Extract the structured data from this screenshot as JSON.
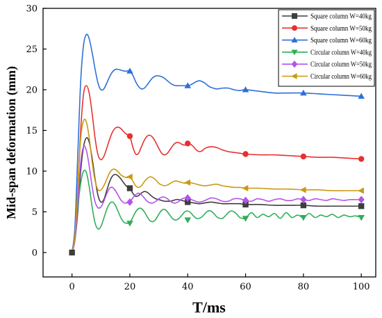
{
  "chart_data": {
    "type": "line",
    "xlabel": "T/ms",
    "ylabel": "Mid-span deformation (mm)",
    "xlim": [
      -10,
      105
    ],
    "ylim": [
      -3,
      30
    ],
    "xticks": [
      0,
      20,
      40,
      60,
      80,
      100
    ],
    "yticks": [
      0,
      5,
      10,
      15,
      20,
      25,
      30
    ],
    "grid": false,
    "legend_position": "top-right",
    "series": [
      {
        "name": "Square column W=40kg",
        "color": "#3d3d3d",
        "marker": "square",
        "x": [
          0,
          1,
          2,
          3,
          4,
          5,
          6,
          7,
          8,
          9,
          10,
          11,
          12,
          13,
          14,
          15,
          16,
          17,
          18,
          19,
          20,
          21,
          22,
          23,
          24,
          25,
          26,
          27,
          28,
          29,
          30,
          31,
          32,
          33,
          34,
          35,
          36,
          37,
          38,
          39,
          40,
          42,
          44,
          46,
          48,
          50,
          52,
          54,
          56,
          58,
          60,
          65,
          70,
          75,
          80,
          85,
          90,
          95,
          100
        ],
        "values": [
          0,
          1.5,
          5.0,
          10.0,
          13.0,
          14.1,
          13.5,
          11.5,
          9.0,
          7.0,
          6.2,
          6.5,
          7.6,
          8.7,
          9.4,
          9.6,
          9.4,
          9.0,
          8.5,
          8.1,
          7.9,
          7.3,
          6.9,
          7.0,
          7.3,
          7.5,
          7.4,
          7.1,
          6.8,
          6.6,
          6.5,
          6.4,
          6.3,
          6.3,
          6.3,
          6.4,
          6.5,
          6.5,
          6.4,
          6.3,
          6.2,
          6.1,
          6.0,
          6.1,
          6.2,
          6.1,
          6.0,
          6.0,
          6.0,
          6.0,
          5.9,
          5.9,
          5.8,
          5.8,
          5.8,
          5.7,
          5.7,
          5.7,
          5.7
        ],
        "marker_x": [
          0,
          20,
          40,
          60,
          80,
          100
        ],
        "marker_values": [
          0,
          7.9,
          6.2,
          5.9,
          5.8,
          5.7
        ]
      },
      {
        "name": "Square column W=50kg",
        "color": "#e8302e",
        "marker": "circle",
        "x": [
          0,
          1,
          2,
          3,
          4,
          5,
          6,
          7,
          8,
          9,
          10,
          11,
          12,
          13,
          14,
          15,
          16,
          17,
          18,
          19,
          20,
          21,
          22,
          23,
          24,
          25,
          26,
          27,
          28,
          29,
          30,
          31,
          32,
          33,
          34,
          35,
          36,
          37,
          38,
          39,
          40,
          41,
          42,
          43,
          44,
          45,
          46,
          48,
          50,
          52,
          54,
          56,
          58,
          60,
          65,
          70,
          75,
          80,
          85,
          90,
          95,
          100
        ],
        "values": [
          0,
          2.0,
          8.0,
          15.0,
          19.5,
          20.5,
          19.5,
          17.0,
          14.0,
          12.0,
          11.4,
          11.8,
          12.8,
          13.9,
          14.8,
          15.3,
          15.4,
          15.2,
          14.8,
          14.5,
          14.3,
          13.0,
          12.1,
          12.2,
          13.0,
          13.8,
          14.3,
          14.4,
          14.1,
          13.5,
          12.8,
          12.2,
          12.0,
          12.2,
          12.7,
          13.2,
          13.5,
          13.5,
          13.3,
          13.2,
          13.4,
          13.3,
          13.0,
          12.6,
          12.4,
          12.5,
          12.8,
          13.0,
          12.9,
          12.6,
          12.4,
          12.3,
          12.2,
          12.1,
          12.0,
          12.0,
          11.9,
          11.8,
          11.7,
          11.7,
          11.6,
          11.5
        ],
        "marker_x": [
          20,
          40,
          60,
          80,
          100
        ],
        "marker_values": [
          14.3,
          13.4,
          12.1,
          11.8,
          11.5
        ]
      },
      {
        "name": "Square column W=60kg",
        "color": "#2e6fd9",
        "marker": "triangle-up",
        "x": [
          0,
          1,
          2,
          3,
          4,
          5,
          6,
          7,
          8,
          9,
          10,
          11,
          12,
          13,
          14,
          15,
          16,
          17,
          18,
          19,
          20,
          21,
          22,
          23,
          24,
          25,
          26,
          27,
          28,
          29,
          30,
          31,
          32,
          33,
          34,
          35,
          36,
          37,
          38,
          39,
          40,
          41,
          42,
          43,
          44,
          45,
          46,
          47,
          48,
          50,
          52,
          54,
          56,
          58,
          60,
          65,
          70,
          75,
          80,
          85,
          90,
          95,
          100
        ],
        "values": [
          0,
          3.0,
          12.0,
          21.0,
          25.5,
          26.8,
          26.2,
          24.5,
          22.5,
          20.8,
          20.0,
          20.1,
          20.8,
          21.6,
          22.2,
          22.5,
          22.5,
          22.4,
          22.3,
          22.3,
          22.3,
          21.8,
          21.0,
          20.4,
          20.1,
          20.2,
          20.6,
          21.1,
          21.5,
          21.7,
          21.7,
          21.6,
          21.4,
          21.1,
          20.8,
          20.6,
          20.5,
          20.5,
          20.5,
          20.5,
          20.5,
          20.6,
          20.8,
          21.0,
          21.1,
          21.0,
          20.8,
          20.5,
          20.3,
          20.1,
          20.2,
          20.2,
          20.0,
          19.9,
          20.0,
          19.8,
          19.6,
          19.6,
          19.6,
          19.5,
          19.4,
          19.3,
          19.2
        ],
        "marker_x": [
          20,
          40,
          60,
          80,
          100
        ],
        "marker_values": [
          22.3,
          20.5,
          20.0,
          19.6,
          19.2
        ]
      },
      {
        "name": "Circular column W=40kg",
        "color": "#2fae59",
        "marker": "triangle-down",
        "x": [
          0,
          1,
          2,
          3,
          4,
          5,
          6,
          7,
          8,
          9,
          10,
          11,
          12,
          13,
          14,
          15,
          16,
          17,
          18,
          19,
          20,
          21,
          22,
          23,
          24,
          25,
          26,
          27,
          28,
          29,
          30,
          31,
          32,
          33,
          34,
          35,
          36,
          37,
          38,
          39,
          40,
          41,
          42,
          43,
          44,
          45,
          46,
          47,
          48,
          49,
          50,
          51,
          52,
          53,
          54,
          55,
          56,
          57,
          58,
          59,
          60,
          62,
          64,
          66,
          68,
          70,
          72,
          74,
          76,
          78,
          80,
          82,
          84,
          86,
          88,
          90,
          92,
          94,
          96,
          98,
          100
        ],
        "values": [
          0,
          1.5,
          5.5,
          8.5,
          10.0,
          9.8,
          8.0,
          5.5,
          3.6,
          2.9,
          3.2,
          4.2,
          5.3,
          6.0,
          6.2,
          5.8,
          5.0,
          4.2,
          3.7,
          3.6,
          3.7,
          4.3,
          5.0,
          5.4,
          5.4,
          5.0,
          4.4,
          3.9,
          3.8,
          4.1,
          4.7,
          5.2,
          5.3,
          5.0,
          4.5,
          4.1,
          4.0,
          4.2,
          4.6,
          5.0,
          5.1,
          4.9,
          4.5,
          4.2,
          4.2,
          4.4,
          4.8,
          5.1,
          5.1,
          4.8,
          4.4,
          4.2,
          4.2,
          4.5,
          4.9,
          5.1,
          5.0,
          4.7,
          4.3,
          4.2,
          4.2,
          4.9,
          4.3,
          4.7,
          4.4,
          4.8,
          4.2,
          4.9,
          4.3,
          4.6,
          4.3,
          4.8,
          4.3,
          4.6,
          4.4,
          4.7,
          4.3,
          4.6,
          4.4,
          4.5,
          4.3
        ],
        "marker_x": [
          20,
          40,
          60,
          80,
          100
        ],
        "marker_values": [
          3.6,
          4.0,
          4.2,
          4.3,
          4.3
        ]
      },
      {
        "name": "Circular column W=50kg",
        "color": "#b553e8",
        "marker": "diamond",
        "x": [
          0,
          1,
          2,
          3,
          4,
          5,
          6,
          7,
          8,
          9,
          10,
          11,
          12,
          13,
          14,
          15,
          16,
          17,
          18,
          19,
          20,
          21,
          22,
          23,
          24,
          25,
          26,
          27,
          28,
          29,
          30,
          31,
          32,
          33,
          34,
          35,
          36,
          37,
          38,
          39,
          40,
          42,
          44,
          46,
          48,
          50,
          52,
          54,
          56,
          58,
          60,
          62,
          64,
          66,
          68,
          70,
          72,
          74,
          76,
          78,
          80,
          82,
          84,
          86,
          88,
          90,
          92,
          94,
          96,
          98,
          100
        ],
        "values": [
          0,
          1.5,
          6.0,
          11.0,
          13.0,
          12.5,
          10.5,
          8.0,
          6.2,
          5.5,
          5.6,
          6.3,
          7.2,
          7.9,
          8.0,
          7.6,
          7.0,
          6.4,
          6.1,
          6.1,
          6.2,
          6.7,
          7.1,
          7.3,
          7.1,
          6.7,
          6.3,
          6.1,
          6.1,
          6.3,
          6.6,
          6.8,
          6.8,
          6.6,
          6.3,
          6.1,
          6.1,
          6.3,
          6.6,
          6.7,
          6.7,
          6.4,
          6.2,
          6.4,
          6.7,
          6.6,
          6.3,
          6.3,
          6.6,
          6.6,
          6.4,
          6.3,
          6.6,
          6.5,
          6.3,
          6.5,
          6.6,
          6.4,
          6.4,
          6.6,
          6.5,
          6.4,
          6.6,
          6.5,
          6.4,
          6.6,
          6.5,
          6.4,
          6.5,
          6.5,
          6.5
        ],
        "marker_x": [
          20,
          40,
          60,
          80,
          100
        ],
        "marker_values": [
          6.2,
          6.7,
          6.4,
          6.5,
          6.5
        ]
      },
      {
        "name": "Circular column W=60kg",
        "color": "#c99a12",
        "marker": "triangle-left",
        "x": [
          0,
          1,
          2,
          3,
          4,
          5,
          6,
          7,
          8,
          9,
          10,
          11,
          12,
          13,
          14,
          15,
          16,
          17,
          18,
          19,
          20,
          21,
          22,
          23,
          24,
          25,
          26,
          27,
          28,
          29,
          30,
          31,
          32,
          33,
          34,
          35,
          36,
          37,
          38,
          39,
          40,
          42,
          44,
          46,
          48,
          50,
          52,
          54,
          56,
          58,
          60,
          65,
          70,
          75,
          80,
          85,
          90,
          95,
          100
        ],
        "values": [
          0,
          2.0,
          8.0,
          14.0,
          16.2,
          16.0,
          14.0,
          11.0,
          8.8,
          7.7,
          7.7,
          8.2,
          9.0,
          9.8,
          10.2,
          10.2,
          9.9,
          9.5,
          9.3,
          9.2,
          9.3,
          8.8,
          8.2,
          8.0,
          8.2,
          8.7,
          9.1,
          9.3,
          9.2,
          8.9,
          8.5,
          8.3,
          8.2,
          8.3,
          8.5,
          8.7,
          8.8,
          8.7,
          8.6,
          8.5,
          8.6,
          8.5,
          8.3,
          8.2,
          8.3,
          8.4,
          8.2,
          8.1,
          8.0,
          8.0,
          7.9,
          7.9,
          7.8,
          7.8,
          7.7,
          7.7,
          7.6,
          7.6,
          7.6
        ],
        "marker_x": [
          20,
          40,
          60,
          80,
          100
        ],
        "marker_values": [
          9.3,
          8.6,
          7.9,
          7.7,
          7.6
        ]
      }
    ]
  }
}
